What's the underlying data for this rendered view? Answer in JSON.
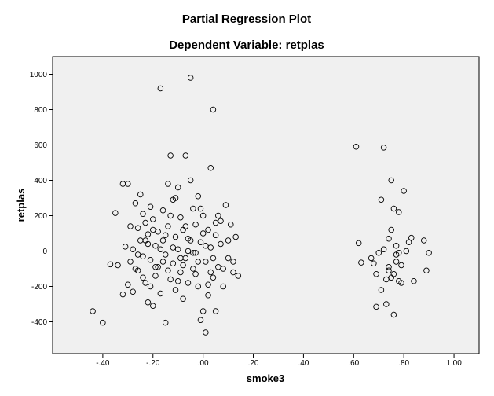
{
  "chart_data": {
    "type": "scatter",
    "title": "Partial Regression Plot",
    "subtitle": "Dependent Variable: retplas",
    "xlabel": "smoke3",
    "ylabel": "retplas",
    "xlim": [
      -0.6,
      1.1
    ],
    "ylim": [
      -580,
      1100
    ],
    "xticks": [
      -0.4,
      -0.2,
      0.0,
      0.2,
      0.4,
      0.6,
      0.8,
      1.0
    ],
    "xtick_labels": [
      "-.40",
      "-.20",
      ".00",
      ".20",
      ".40",
      ".60",
      ".80",
      "1.00"
    ],
    "yticks": [
      -400,
      -200,
      0,
      200,
      400,
      600,
      800,
      1000
    ],
    "ytick_labels": [
      "-400",
      "-200",
      "0",
      "200",
      "400",
      "600",
      "800",
      "1000"
    ],
    "grid": false,
    "plot_background": "#f0f0f0",
    "marker": "open-circle",
    "marker_color": "#000000",
    "points": [
      {
        "x": -0.44,
        "y": -340
      },
      {
        "x": -0.4,
        "y": -405
      },
      {
        "x": -0.37,
        "y": -75
      },
      {
        "x": -0.35,
        "y": 215
      },
      {
        "x": -0.34,
        "y": -80
      },
      {
        "x": -0.32,
        "y": 380
      },
      {
        "x": -0.32,
        "y": -245
      },
      {
        "x": -0.3,
        "y": 380
      },
      {
        "x": -0.31,
        "y": 25
      },
      {
        "x": -0.3,
        "y": -190
      },
      {
        "x": -0.29,
        "y": -60
      },
      {
        "x": -0.28,
        "y": 10
      },
      {
        "x": -0.28,
        "y": -230
      },
      {
        "x": -0.27,
        "y": 270
      },
      {
        "x": -0.26,
        "y": 130
      },
      {
        "x": -0.26,
        "y": -110
      },
      {
        "x": -0.25,
        "y": 320
      },
      {
        "x": -0.25,
        "y": 60
      },
      {
        "x": -0.24,
        "y": -30
      },
      {
        "x": -0.24,
        "y": 210
      },
      {
        "x": -0.23,
        "y": -180
      },
      {
        "x": -0.23,
        "y": 160
      },
      {
        "x": -0.22,
        "y": -290
      },
      {
        "x": -0.22,
        "y": 95
      },
      {
        "x": -0.21,
        "y": 250
      },
      {
        "x": -0.21,
        "y": -50
      },
      {
        "x": -0.2,
        "y": 180
      },
      {
        "x": -0.2,
        "y": -310
      },
      {
        "x": -0.19,
        "y": 30
      },
      {
        "x": -0.19,
        "y": -140
      },
      {
        "x": -0.18,
        "y": 110
      },
      {
        "x": -0.18,
        "y": -90
      },
      {
        "x": -0.17,
        "y": 920
      },
      {
        "x": -0.17,
        "y": -240
      },
      {
        "x": -0.16,
        "y": 60
      },
      {
        "x": -0.16,
        "y": 230
      },
      {
        "x": -0.15,
        "y": -405
      },
      {
        "x": -0.15,
        "y": -20
      },
      {
        "x": -0.14,
        "y": 380
      },
      {
        "x": -0.14,
        "y": 140
      },
      {
        "x": -0.13,
        "y": 540
      },
      {
        "x": -0.13,
        "y": -160
      },
      {
        "x": -0.12,
        "y": 290
      },
      {
        "x": -0.12,
        "y": -70
      },
      {
        "x": -0.11,
        "y": 80
      },
      {
        "x": -0.11,
        "y": -220
      },
      {
        "x": -0.1,
        "y": 360
      },
      {
        "x": -0.1,
        "y": 10
      },
      {
        "x": -0.09,
        "y": -120
      },
      {
        "x": -0.09,
        "y": 190
      },
      {
        "x": -0.08,
        "y": -270
      },
      {
        "x": -0.08,
        "y": 120
      },
      {
        "x": -0.07,
        "y": 540
      },
      {
        "x": -0.07,
        "y": -40
      },
      {
        "x": -0.06,
        "y": 70
      },
      {
        "x": -0.06,
        "y": -180
      },
      {
        "x": -0.05,
        "y": 980
      },
      {
        "x": -0.05,
        "y": 400
      },
      {
        "x": -0.04,
        "y": 240
      },
      {
        "x": -0.04,
        "y": -100
      },
      {
        "x": -0.03,
        "y": -10
      },
      {
        "x": -0.03,
        "y": 150
      },
      {
        "x": -0.02,
        "y": 310
      },
      {
        "x": -0.02,
        "y": -200
      },
      {
        "x": -0.01,
        "y": -390
      },
      {
        "x": -0.01,
        "y": 50
      },
      {
        "x": 0.0,
        "y": -340
      },
      {
        "x": 0.0,
        "y": 200
      },
      {
        "x": 0.01,
        "y": -460
      },
      {
        "x": 0.01,
        "y": -60
      },
      {
        "x": 0.02,
        "y": 120
      },
      {
        "x": 0.02,
        "y": -250
      },
      {
        "x": 0.03,
        "y": 470
      },
      {
        "x": 0.03,
        "y": 20
      },
      {
        "x": 0.04,
        "y": 800
      },
      {
        "x": 0.04,
        "y": -150
      },
      {
        "x": 0.05,
        "y": -340
      },
      {
        "x": 0.05,
        "y": 90
      },
      {
        "x": 0.06,
        "y": -90
      },
      {
        "x": 0.06,
        "y": 200
      },
      {
        "x": 0.07,
        "y": 170
      },
      {
        "x": 0.08,
        "y": -200
      },
      {
        "x": 0.09,
        "y": 260
      },
      {
        "x": 0.1,
        "y": -40
      },
      {
        "x": 0.11,
        "y": 150
      },
      {
        "x": 0.12,
        "y": -120
      },
      {
        "x": 0.13,
        "y": 80
      },
      {
        "x": 0.14,
        "y": -140
      },
      {
        "x": -0.27,
        "y": -100
      },
      {
        "x": -0.22,
        "y": 40
      },
      {
        "x": -0.19,
        "y": -90
      },
      {
        "x": -0.15,
        "y": 90
      },
      {
        "x": -0.12,
        "y": 20
      },
      {
        "x": -0.09,
        "y": -40
      },
      {
        "x": -0.06,
        "y": 0
      },
      {
        "x": -0.03,
        "y": -130
      },
      {
        "x": 0.0,
        "y": 100
      },
      {
        "x": 0.03,
        "y": -120
      },
      {
        "x": 0.07,
        "y": 40
      },
      {
        "x": -0.24,
        "y": -150
      },
      {
        "x": -0.2,
        "y": 120
      },
      {
        "x": -0.16,
        "y": -60
      },
      {
        "x": -0.13,
        "y": 200
      },
      {
        "x": -0.1,
        "y": -170
      },
      {
        "x": -0.07,
        "y": 140
      },
      {
        "x": -0.04,
        "y": -10
      },
      {
        "x": -0.01,
        "y": 240
      },
      {
        "x": 0.02,
        "y": -190
      },
      {
        "x": 0.05,
        "y": 160
      },
      {
        "x": 0.1,
        "y": 60
      },
      {
        "x": 0.12,
        "y": -60
      },
      {
        "x": -0.29,
        "y": 140
      },
      {
        "x": -0.26,
        "y": -20
      },
      {
        "x": -0.23,
        "y": 60
      },
      {
        "x": -0.21,
        "y": -200
      },
      {
        "x": -0.17,
        "y": 10
      },
      {
        "x": -0.14,
        "y": -110
      },
      {
        "x": -0.11,
        "y": 300
      },
      {
        "x": -0.08,
        "y": -80
      },
      {
        "x": -0.05,
        "y": 60
      },
      {
        "x": -0.02,
        "y": -60
      },
      {
        "x": 0.01,
        "y": 30
      },
      {
        "x": 0.04,
        "y": -40
      },
      {
        "x": 0.08,
        "y": -100
      },
      {
        "x": 0.61,
        "y": 590
      },
      {
        "x": 0.62,
        "y": 45
      },
      {
        "x": 0.63,
        "y": -65
      },
      {
        "x": 0.67,
        "y": -40
      },
      {
        "x": 0.68,
        "y": -70
      },
      {
        "x": 0.69,
        "y": -130
      },
      {
        "x": 0.69,
        "y": -315
      },
      {
        "x": 0.7,
        "y": -10
      },
      {
        "x": 0.71,
        "y": 290
      },
      {
        "x": 0.71,
        "y": -220
      },
      {
        "x": 0.72,
        "y": 585
      },
      {
        "x": 0.72,
        "y": 10
      },
      {
        "x": 0.73,
        "y": -160
      },
      {
        "x": 0.73,
        "y": -300
      },
      {
        "x": 0.74,
        "y": 70
      },
      {
        "x": 0.74,
        "y": -90
      },
      {
        "x": 0.75,
        "y": 400
      },
      {
        "x": 0.75,
        "y": 120
      },
      {
        "x": 0.75,
        "y": -150
      },
      {
        "x": 0.76,
        "y": -130
      },
      {
        "x": 0.76,
        "y": 240
      },
      {
        "x": 0.76,
        "y": -360
      },
      {
        "x": 0.77,
        "y": 30
      },
      {
        "x": 0.77,
        "y": -60
      },
      {
        "x": 0.78,
        "y": 220
      },
      {
        "x": 0.78,
        "y": -10
      },
      {
        "x": 0.78,
        "y": -170
      },
      {
        "x": 0.79,
        "y": -80
      },
      {
        "x": 0.8,
        "y": 340
      },
      {
        "x": 0.81,
        "y": 0
      },
      {
        "x": 0.82,
        "y": 50
      },
      {
        "x": 0.83,
        "y": 75
      },
      {
        "x": 0.84,
        "y": -170
      },
      {
        "x": 0.88,
        "y": 60
      },
      {
        "x": 0.89,
        "y": -110
      },
      {
        "x": 0.9,
        "y": -10
      },
      {
        "x": 0.74,
        "y": -110
      },
      {
        "x": 0.77,
        "y": -20
      },
      {
        "x": 0.79,
        "y": -180
      }
    ]
  }
}
